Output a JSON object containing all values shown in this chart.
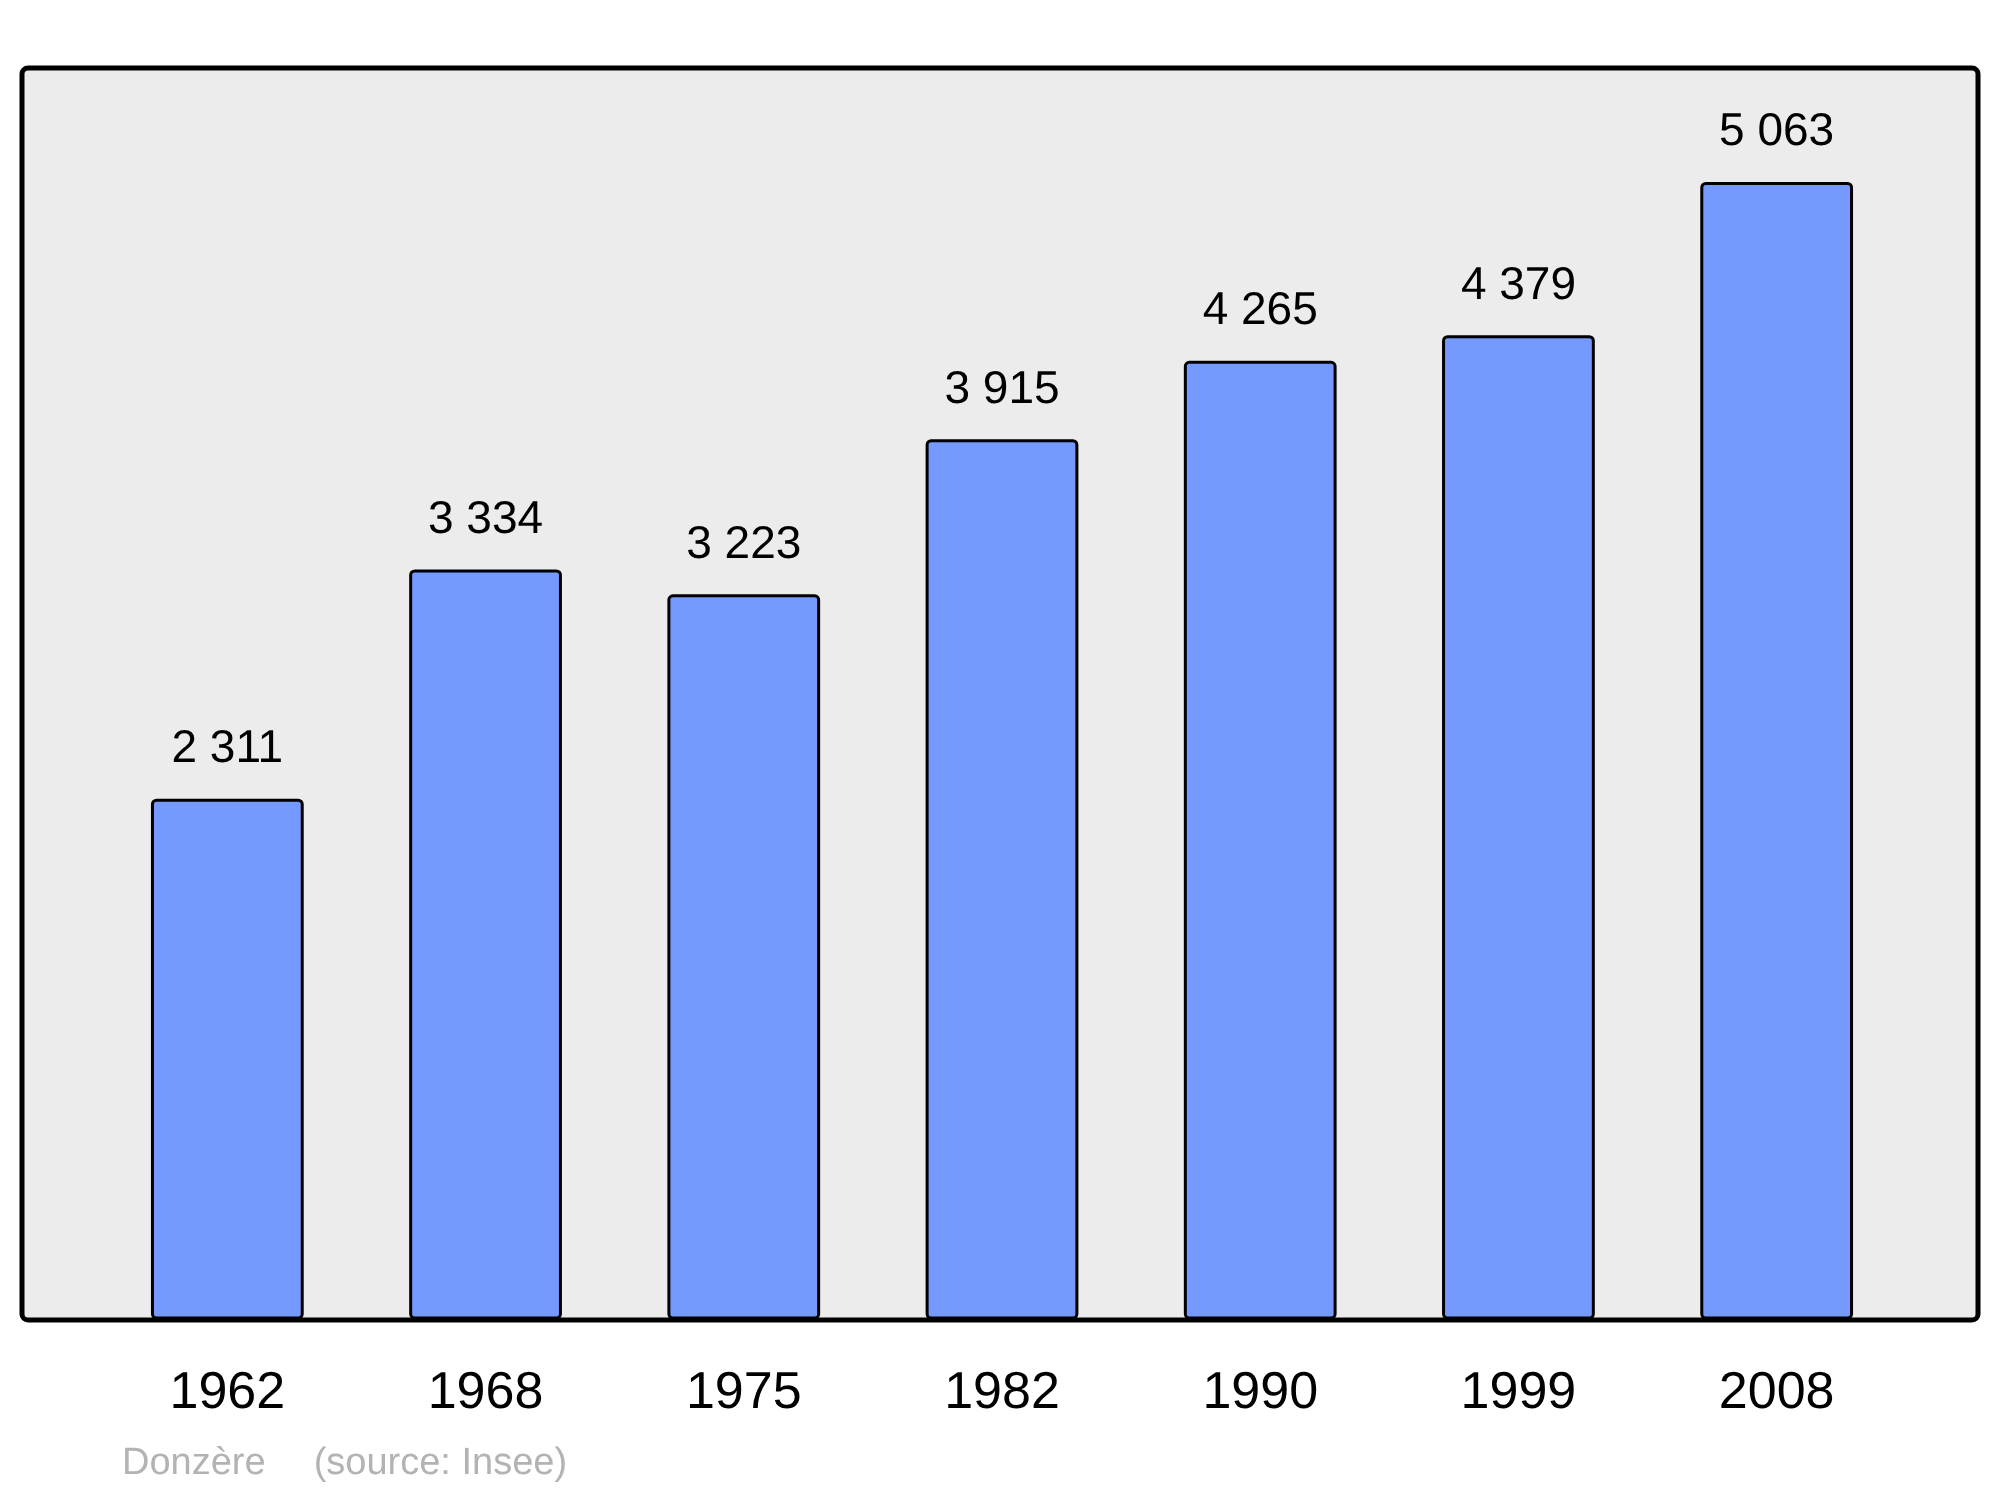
{
  "chart_data": {
    "type": "bar",
    "categories": [
      "1962",
      "1968",
      "1975",
      "1982",
      "1990",
      "1999",
      "2008"
    ],
    "values": [
      2311,
      3334,
      3223,
      3915,
      4265,
      4379,
      5063
    ],
    "value_labels": [
      "2 311",
      "3 334",
      "3 223",
      "3 915",
      "4 265",
      "4 379",
      "5 063"
    ],
    "color": "#7499ff",
    "annotations": [
      "Donzère",
      "(source: Insee)"
    ]
  }
}
